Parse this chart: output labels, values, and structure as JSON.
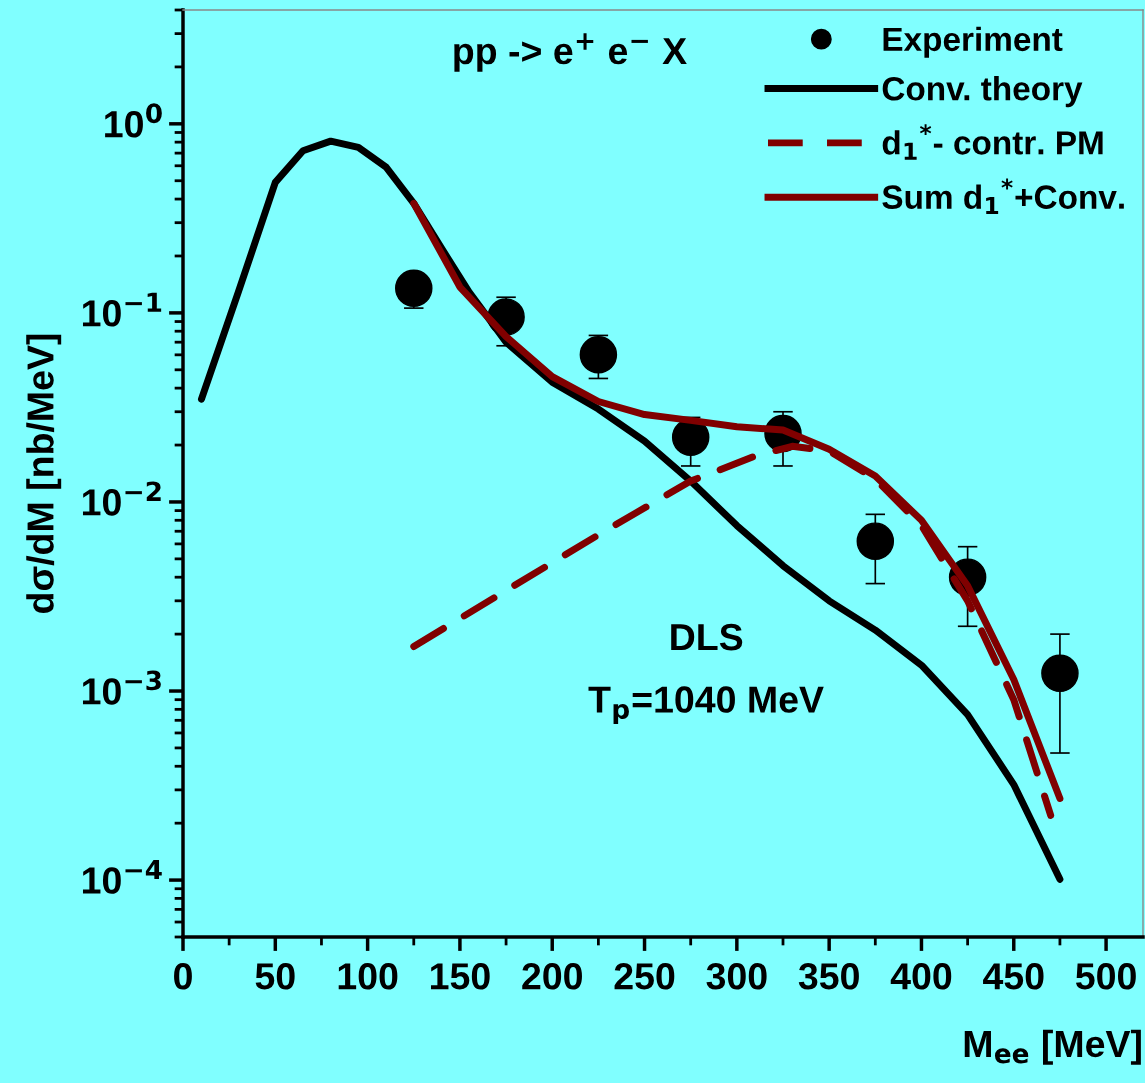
{
  "chart_data": {
    "type": "line",
    "xlabel": "M$_{ee}$ [MeV]",
    "ylabel": "dσ/dM [nb/MeV]",
    "annotations": [
      "pp -> e$^{+}$ e$^{−}$ X",
      "DLS",
      "T$_{p}$=1040 MeV"
    ],
    "log": "y",
    "xlim": [
      0,
      520
    ],
    "ylim": [
      5e-05,
      4
    ],
    "xticks": [
      0,
      {
        "value": 25,
        "label": null
      },
      50,
      {
        "value": 75,
        "label": null
      },
      100,
      {
        "value": 125,
        "label": null
      },
      150,
      {
        "value": 175,
        "label": null
      },
      200,
      {
        "value": 225,
        "label": null
      },
      250,
      {
        "value": 275,
        "label": null
      },
      300,
      {
        "value": 325,
        "label": null
      },
      350,
      {
        "value": 375,
        "label": null
      },
      400,
      {
        "value": 425,
        "label": null
      },
      450,
      {
        "value": 475,
        "label": null
      },
      500
    ],
    "yticks": [
      {
        "value": 0.0001,
        "label": "10$^{−4}$"
      },
      {
        "value": 0.001,
        "label": "10$^{−3}$"
      },
      {
        "value": 0.01,
        "label": "10$^{−2}$"
      },
      {
        "value": 0.1,
        "label": "10$^{−1}$"
      },
      {
        "value": 1,
        "label": "10$^{0}$"
      }
    ],
    "legend": "top right",
    "series": [
      {
        "name": "Experiment",
        "type": "scatter",
        "marker": "circle",
        "color": "#000000",
        "x": [
          125,
          175,
          225,
          275,
          325,
          375,
          425,
          475
        ],
        "values": [
          0.135,
          0.095,
          0.06,
          0.022,
          0.023,
          0.0062,
          0.004,
          0.00124
        ],
        "errors": [
          [
            0.106,
            0.135
          ],
          [
            0.067,
            0.121
          ],
          [
            0.045,
            0.076
          ],
          [
            0.0155,
            0.028
          ],
          [
            0.0155,
            0.03
          ],
          [
            0.0037,
            0.0086
          ],
          [
            0.0022,
            0.0058
          ],
          [
            0.00047,
            0.002
          ]
        ]
      },
      {
        "name": "Conv. theory",
        "line_style": "solid",
        "color": "#000000",
        "x": [
          10,
          30,
          50,
          65,
          80,
          95,
          110,
          125,
          140,
          155,
          175,
          200,
          225,
          250,
          275,
          300,
          325,
          350,
          375,
          400,
          425,
          450,
          475
        ],
        "values": [
          0.035,
          0.129,
          0.49,
          0.72,
          0.81,
          0.75,
          0.59,
          0.38,
          0.22,
          0.129,
          0.07,
          0.043,
          0.031,
          0.021,
          0.0129,
          0.0075,
          0.0046,
          0.003,
          0.0021,
          0.00137,
          0.00075,
          0.00032,
          0.000101
        ]
      },
      {
        "name": "d$_{1}$$^{*}$- contr. PM",
        "line_style": "dashed",
        "color": "#800000",
        "x": [
          125,
          175,
          225,
          275,
          310,
          330,
          350,
          375,
          400,
          425,
          450,
          470
        ],
        "values": [
          0.00172,
          0.0034,
          0.0067,
          0.0129,
          0.0175,
          0.0197,
          0.0186,
          0.0132,
          0.0075,
          0.003,
          0.0009,
          0.00022
        ]
      },
      {
        "name": "Sum d$_{1}$$^{*}$+Conv.",
        "line_style": "solid",
        "color": "#800000",
        "x": [
          125,
          150,
          175,
          200,
          225,
          250,
          275,
          300,
          325,
          350,
          375,
          400,
          425,
          450,
          475
        ],
        "values": [
          0.38,
          0.137,
          0.075,
          0.046,
          0.034,
          0.029,
          0.027,
          0.025,
          0.024,
          0.019,
          0.0137,
          0.008,
          0.0036,
          0.00115,
          0.00027
        ]
      }
    ]
  }
}
